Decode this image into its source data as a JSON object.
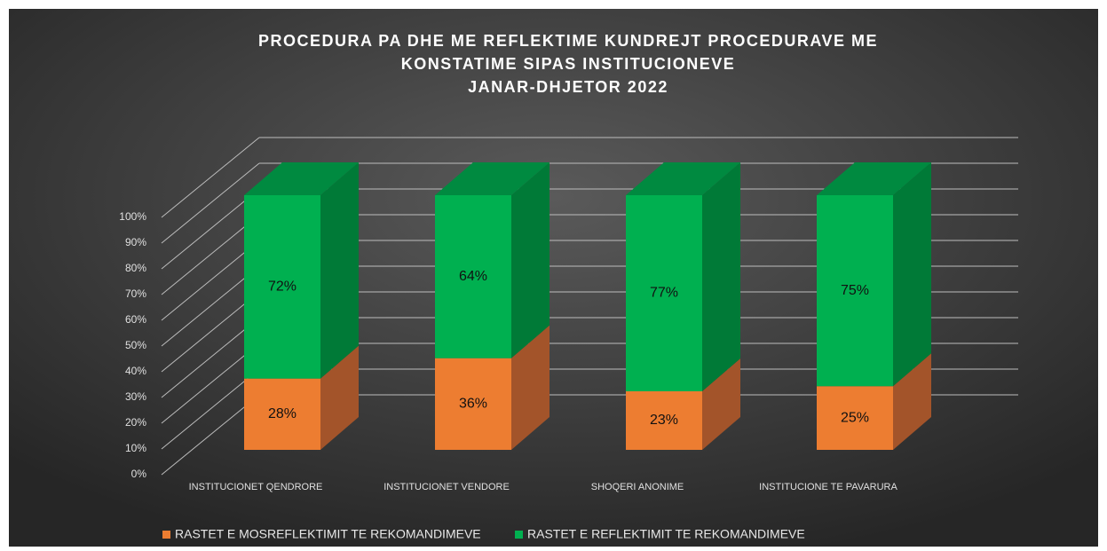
{
  "chart_data": {
    "type": "bar3d_stacked",
    "title": [
      "PROCEDURA PA DHE ME REFLEKTIME KUNDREJT PROCEDURAVE ME",
      "KONSTATIME SIPAS INSTITUCIONEVE",
      "JANAR-DHJETOR 2022"
    ],
    "categories": [
      "INSTITUCIONET QENDRORE",
      "INSTITUCIONET VENDORE",
      "SHOQERI ANONIME",
      "INSTITUCIONE TE PAVARURA"
    ],
    "series": [
      {
        "name": "RASTET E MOSREFLEKTIMIT TE REKOMANDIMEVE",
        "color": "#ed7d31",
        "side_color": "#a3542a",
        "values": [
          28,
          36,
          23,
          25
        ],
        "value_labels": [
          "28%",
          "36%",
          "23%",
          "25%"
        ]
      },
      {
        "name": "RASTET E REFLEKTIMIT TE REKOMANDIMEVE",
        "color": "#00b050",
        "side_color": "#007a37",
        "top_color": "#008a40",
        "values": [
          72,
          64,
          77,
          75
        ],
        "value_labels": [
          "72%",
          "64%",
          "77%",
          "75%"
        ]
      }
    ],
    "ylim": [
      0,
      100
    ],
    "yticks": [
      {
        "value": 0,
        "label": "0%"
      },
      {
        "value": 10,
        "label": "10%"
      },
      {
        "value": 20,
        "label": "20%"
      },
      {
        "value": 30,
        "label": "30%"
      },
      {
        "value": 40,
        "label": "40%"
      },
      {
        "value": 50,
        "label": "50%"
      },
      {
        "value": 60,
        "label": "60%"
      },
      {
        "value": 70,
        "label": "70%"
      },
      {
        "value": 80,
        "label": "80%"
      },
      {
        "value": 90,
        "label": "90%"
      },
      {
        "value": 100,
        "label": "100%"
      }
    ],
    "grid": true,
    "legend": "bottom"
  }
}
